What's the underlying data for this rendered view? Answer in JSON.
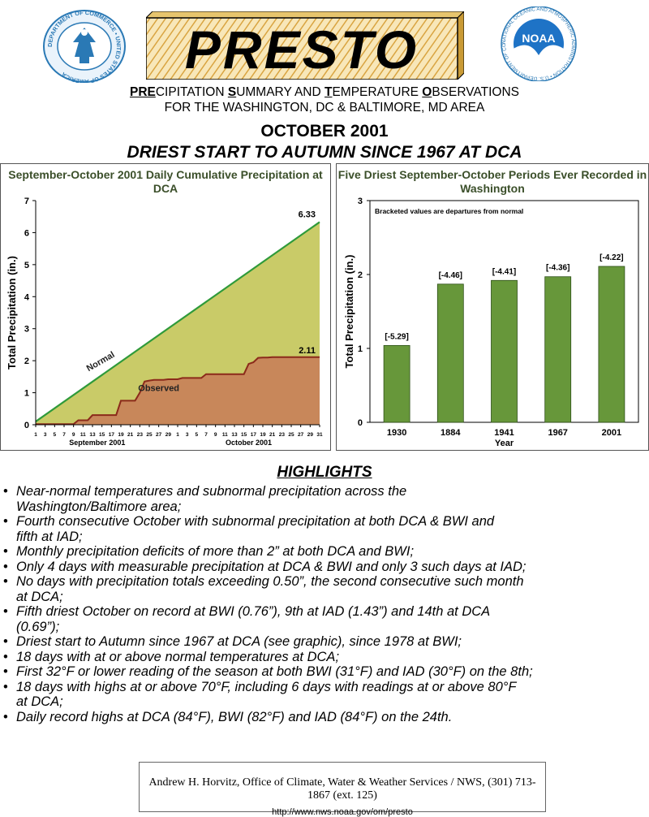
{
  "logos": {
    "left": {
      "icon": "department-of-commerce-seal-icon",
      "text": "DEPARTMENT OF COMMERCE • UNITED STATES OF AMERICA"
    },
    "right": {
      "icon": "noaa-seal-icon",
      "center_text": "NOAA",
      "text": "NATIONAL OCEANIC AND ATMOSPHERIC ADMINISTRATION • U.S. DEPARTMENT OF COMMERCE"
    }
  },
  "banner": {
    "title": "PRESTO"
  },
  "header": {
    "line1_parts": [
      "PRE",
      "CIPITATION ",
      "S",
      "UMMARY AND ",
      "T",
      "EMPERATURE ",
      "O",
      "BSERVATIONS"
    ],
    "line2": "FOR THE WASHINGTON, DC & BALTIMORE, MD AREA"
  },
  "titles": {
    "month": "OCTOBER 2001",
    "headline": "DRIEST START TO AUTUMN SINCE 1967 AT DCA"
  },
  "chart_data": [
    {
      "type": "area",
      "title": "September-October 2001 Daily Cumulative Precipitation at DCA",
      "ylabel": "Total Precipitation (in.)",
      "xlabel": "",
      "x_group_labels": [
        "September 2001",
        "October 2001"
      ],
      "x_ticks": [
        "1",
        "3",
        "5",
        "7",
        "9",
        "11",
        "13",
        "15",
        "17",
        "19",
        "21",
        "23",
        "25",
        "27",
        "29",
        "1",
        "3",
        "5",
        "7",
        "9",
        "11",
        "13",
        "15",
        "17",
        "19",
        "21",
        "23",
        "25",
        "27",
        "29",
        "31"
      ],
      "y_ticks": [
        0,
        1,
        2,
        3,
        4,
        5,
        6,
        7
      ],
      "ylim": [
        0,
        7
      ],
      "grid": false,
      "series": [
        {
          "name": "Normal",
          "color": "#c9cb68",
          "x_days": [
            1,
            61
          ],
          "values": [
            0.1,
            6.33
          ],
          "end_label": "6.33"
        },
        {
          "name": "Observed",
          "color": "#c8875a",
          "x_days": [
            1,
            2,
            3,
            4,
            5,
            6,
            7,
            8,
            9,
            10,
            11,
            12,
            13,
            14,
            15,
            16,
            17,
            18,
            19,
            20,
            21,
            22,
            23,
            24,
            25,
            26,
            27,
            28,
            29,
            30,
            31,
            32,
            33,
            34,
            35,
            36,
            37,
            38,
            39,
            40,
            41,
            42,
            43,
            44,
            45,
            46,
            47,
            48,
            49,
            50,
            51,
            52,
            53,
            54,
            55,
            56,
            57,
            58,
            59,
            60,
            61
          ],
          "values": [
            0.02,
            0.02,
            0.02,
            0.02,
            0.02,
            0.02,
            0.02,
            0.02,
            0.02,
            0.14,
            0.14,
            0.14,
            0.3,
            0.3,
            0.3,
            0.3,
            0.3,
            0.3,
            0.75,
            0.75,
            0.75,
            0.75,
            1.0,
            1.35,
            1.38,
            1.4,
            1.4,
            1.4,
            1.42,
            1.42,
            1.42,
            1.46,
            1.46,
            1.46,
            1.46,
            1.46,
            1.58,
            1.58,
            1.58,
            1.58,
            1.58,
            1.58,
            1.58,
            1.58,
            1.58,
            1.9,
            1.95,
            2.09,
            2.1,
            2.1,
            2.11,
            2.11,
            2.11,
            2.11,
            2.11,
            2.11,
            2.11,
            2.11,
            2.11,
            2.11,
            2.11
          ],
          "end_label": "2.11"
        }
      ]
    },
    {
      "type": "bar",
      "title": "Five Driest September-October Periods Ever Recorded in Washington",
      "note": "Bracketed values are departures from normal",
      "xlabel": "Year",
      "ylabel": "Total Precipitation (in.)",
      "ylim": [
        0,
        3
      ],
      "y_ticks": [
        0,
        1,
        2,
        3
      ],
      "grid": false,
      "categories": [
        "1930",
        "1884",
        "1941",
        "1967",
        "2001"
      ],
      "values": [
        1.04,
        1.87,
        1.92,
        1.97,
        2.11
      ],
      "data_labels": [
        "[-5.29]",
        "[-4.46]",
        "[-4.41]",
        "[-4.36]",
        "[-4.22]"
      ],
      "bar_color": "#67973a"
    }
  ],
  "highlights": {
    "title": "HIGHLIGHTS",
    "items": [
      [
        "Near-normal temperatures and subnormal precipitation across the",
        "Washington/Baltimore area;"
      ],
      [
        "Fourth consecutive October with subnormal precipitation at both DCA & BWI and",
        "fifth at IAD;"
      ],
      [
        "Monthly precipitation deficits of more than 2” at both DCA and BWI;"
      ],
      [
        "Only 4 days with measurable precipitation at DCA & BWI and only 3 such days at IAD;"
      ],
      [
        "No days with precipitation totals exceeding 0.50”, the second consecutive such month",
        "at DCA;"
      ],
      [
        "Fifth driest October on record at BWI (0.76”), 9th at IAD (1.43”) and 14th at DCA",
        "(0.69”);"
      ],
      [
        "Driest start to Autumn since 1967 at DCA (see graphic), since 1978 at BWI;"
      ],
      [
        "18 days with at or above normal temperatures at DCA;"
      ],
      [
        "First 32°F or lower reading of the season at both BWI (31°F) and IAD (30°F) on the 8th;"
      ],
      [
        "18 days with highs at or above 70°F, including 6 days with readings at or above 80°F",
        "at DCA;"
      ],
      [
        "Daily record highs at DCA (84°F), BWI (82°F) and IAD (84°F) on the 24th."
      ]
    ]
  },
  "footer": {
    "line1": "Andrew H. Horvitz, Office of Climate, Water & Weather Services / NWS, (301) 713-1867 (ext. 125)",
    "line2": "http://www.nws.noaa.gov/om/presto"
  }
}
